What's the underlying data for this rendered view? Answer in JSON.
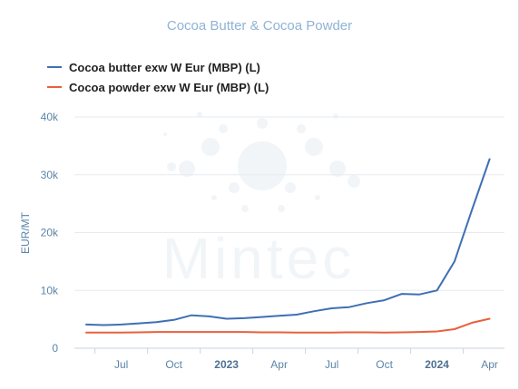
{
  "chart_data": {
    "type": "line",
    "title": "Cocoa Butter & Cocoa Powder",
    "ylabel": "EUR/MT",
    "xlabel": "",
    "ylim": [
      0,
      40000
    ],
    "y_ticks": [
      0,
      10000,
      20000,
      30000,
      40000
    ],
    "y_tick_labels": [
      "0",
      "10k",
      "20k",
      "30k",
      "40k"
    ],
    "x_tick_labels": [
      {
        "label": "Jul",
        "date": "2022-07",
        "bold": false
      },
      {
        "label": "Oct",
        "date": "2022-10",
        "bold": false
      },
      {
        "label": "2023",
        "date": "2023-01",
        "bold": true
      },
      {
        "label": "Apr",
        "date": "2023-04",
        "bold": false
      },
      {
        "label": "Jul",
        "date": "2023-07",
        "bold": false
      },
      {
        "label": "Oct",
        "date": "2023-10",
        "bold": false
      },
      {
        "label": "2024",
        "date": "2024-01",
        "bold": true
      },
      {
        "label": "Apr",
        "date": "2024-04",
        "bold": false
      }
    ],
    "x": [
      "2022-05",
      "2022-06",
      "2022-07",
      "2022-08",
      "2022-09",
      "2022-10",
      "2022-11",
      "2022-12",
      "2023-01",
      "2023-02",
      "2023-03",
      "2023-04",
      "2023-05",
      "2023-06",
      "2023-07",
      "2023-08",
      "2023-09",
      "2023-10",
      "2023-11",
      "2023-12",
      "2024-01",
      "2024-02",
      "2024-03",
      "2024-04"
    ],
    "series": [
      {
        "name": "Cocoa butter exw W Eur (MBP) (L)",
        "color": "#3f6fb5",
        "values": [
          4100,
          4000,
          4100,
          4300,
          4500,
          4900,
          5700,
          5500,
          5100,
          5200,
          5400,
          5600,
          5800,
          6400,
          6900,
          7100,
          7800,
          8300,
          9400,
          9300,
          10000,
          15000,
          24000,
          32700
        ]
      },
      {
        "name": "Cocoa powder exw W Eur (MBP) (L)",
        "color": "#e8603c",
        "values": [
          2700,
          2700,
          2700,
          2750,
          2800,
          2800,
          2800,
          2800,
          2800,
          2800,
          2750,
          2750,
          2700,
          2700,
          2700,
          2750,
          2750,
          2700,
          2750,
          2800,
          2900,
          3300,
          4400,
          5100
        ]
      }
    ],
    "legend_position": "top-left",
    "grid": true,
    "watermark": "Mintec"
  }
}
